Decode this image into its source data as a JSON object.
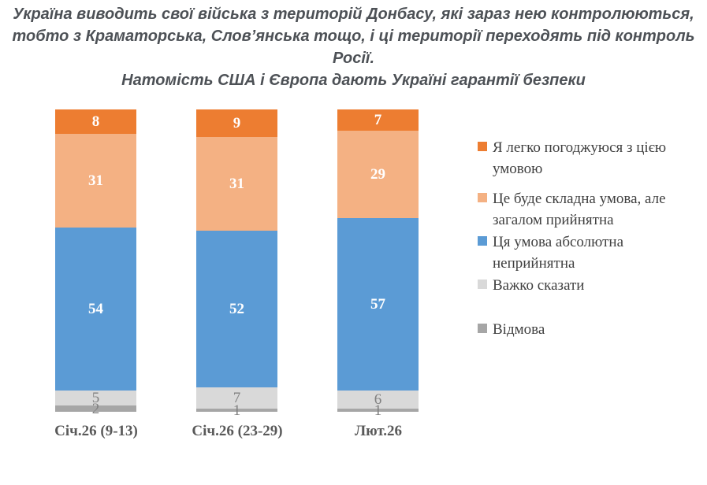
{
  "title": {
    "line1": "Україна виводить свої війська з територій Донбасу, які зараз нею контролюються,",
    "line2": "тобто з Краматорська, Слов’янська тощо, і ці території переходять під контроль Росії.",
    "line3": "Натомість США і Європа дають Україні гарантії безпеки",
    "color": "#4D5156"
  },
  "chart_data": {
    "type": "bar",
    "stacked": true,
    "units": "percent",
    "categories": [
      "Січ.26 (9-13)",
      "Січ.26 (23-29)",
      "Лют.26"
    ],
    "series": [
      {
        "name": "Я легко погоджуюся з цією умовою",
        "color": "#ED7D31",
        "label_color": "#FFFFFF",
        "values": [
          8,
          9,
          7
        ]
      },
      {
        "name": "Це буде складна умова, але загалом прийнятна",
        "color": "#F4B183",
        "label_color": "#FFFFFF",
        "values": [
          31,
          31,
          29
        ]
      },
      {
        "name": "Ця умова абсолютна неприйнятна",
        "color": "#5B9BD5",
        "label_color": "#FFFFFF",
        "values": [
          54,
          52,
          57
        ]
      },
      {
        "name": "Важко сказати",
        "color": "#D9D9D9",
        "label_color": "#808080",
        "values": [
          5,
          7,
          6
        ]
      },
      {
        "name": "Відмова",
        "color": "#A6A6A6",
        "label_color": "#808080",
        "values": [
          2,
          1,
          1
        ]
      }
    ],
    "ylim": [
      0,
      100
    ],
    "grid": false,
    "legend_position": "right",
    "category_label_color": "#595959",
    "legend_text_color": "#404040"
  }
}
